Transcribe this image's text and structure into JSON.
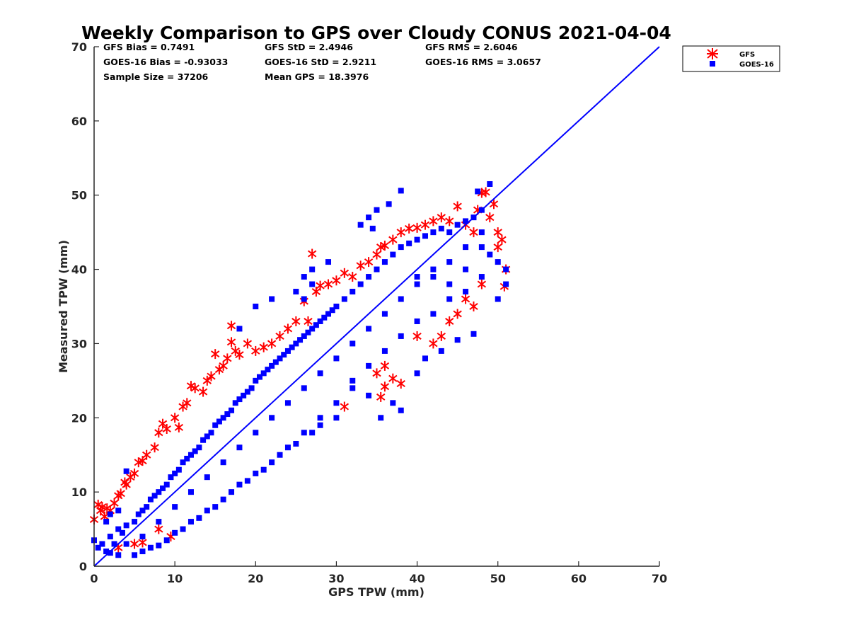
{
  "chart_data": {
    "type": "scatter",
    "title": "Weekly Comparison to GPS over Cloudy CONUS 2021-04-04",
    "xlabel": "GPS TPW (mm)",
    "ylabel": "Measured TPW (mm)",
    "xlim": [
      0,
      70
    ],
    "ylim": [
      0,
      70
    ],
    "xticks": [
      "0",
      "10",
      "20",
      "30",
      "40",
      "50",
      "60",
      "70"
    ],
    "yticks": [
      "0",
      "10",
      "20",
      "30",
      "40",
      "50",
      "60",
      "70"
    ],
    "grid": false,
    "legend_position": "outside top-right",
    "reference_line": {
      "x": [
        0,
        70
      ],
      "y": [
        0,
        70
      ],
      "color": "#0000ff"
    },
    "stats": {
      "gfs_bias": "GFS Bias = 0.7491",
      "gfs_std": "GFS StD = 2.4946",
      "gfs_rms": "GFS RMS = 2.6046",
      "goes_bias": "GOES-16 Bias = -0.93033",
      "goes_std": "GOES-16 StD = 2.9211",
      "goes_rms": "GOES-16 RMS = 3.0657",
      "sample_size": "Sample Size = 37206",
      "mean_gps": "Mean GPS = 18.3976"
    },
    "series": [
      {
        "name": "GFS",
        "marker": "asterisk",
        "color": "#ff0000",
        "points": [
          [
            0,
            6.3
          ],
          [
            0.5,
            8.3
          ],
          [
            0.8,
            7.5
          ],
          [
            1,
            8
          ],
          [
            1.3,
            6.7
          ],
          [
            1.6,
            7.8
          ],
          [
            2,
            7.5
          ],
          [
            2.5,
            8.5
          ],
          [
            3,
            9.5
          ],
          [
            3.3,
            9.8
          ],
          [
            3.8,
            11.3
          ],
          [
            4,
            11
          ],
          [
            4.5,
            12
          ],
          [
            5,
            12.5
          ],
          [
            5.5,
            14
          ],
          [
            6,
            14.2
          ],
          [
            6.5,
            15
          ],
          [
            7.5,
            16
          ],
          [
            8,
            18
          ],
          [
            8.5,
            19.2
          ],
          [
            9,
            18.5
          ],
          [
            10,
            20
          ],
          [
            10.5,
            18.7
          ],
          [
            11,
            21.5
          ],
          [
            11.5,
            22
          ],
          [
            12,
            24.3
          ],
          [
            12.5,
            24
          ],
          [
            13.5,
            23.5
          ],
          [
            14,
            25
          ],
          [
            14.5,
            25.6
          ],
          [
            15,
            28.6
          ],
          [
            15.5,
            26.5
          ],
          [
            16,
            27
          ],
          [
            16.5,
            28
          ],
          [
            17,
            32.4
          ],
          [
            17,
            30.2
          ],
          [
            17.5,
            29
          ],
          [
            18,
            28.5
          ],
          [
            19,
            30
          ],
          [
            20,
            29
          ],
          [
            21,
            29.5
          ],
          [
            22,
            30
          ],
          [
            23,
            31
          ],
          [
            24,
            32
          ],
          [
            25,
            33
          ],
          [
            26,
            35.7
          ],
          [
            26.5,
            33
          ],
          [
            27,
            42.1
          ],
          [
            27.5,
            37
          ],
          [
            28,
            37.8
          ],
          [
            29,
            38
          ],
          [
            30,
            38.5
          ],
          [
            31,
            39.5
          ],
          [
            32,
            39
          ],
          [
            33,
            40.5
          ],
          [
            34,
            41
          ],
          [
            35,
            42
          ],
          [
            35.5,
            43
          ],
          [
            36,
            43.2
          ],
          [
            37,
            44
          ],
          [
            38,
            45
          ],
          [
            39,
            45.5
          ],
          [
            40,
            45.6
          ],
          [
            41,
            46
          ],
          [
            42,
            46.5
          ],
          [
            43,
            47
          ],
          [
            44,
            46.5
          ],
          [
            45,
            48.5
          ],
          [
            46,
            46
          ],
          [
            47,
            45
          ],
          [
            47.5,
            48
          ],
          [
            48,
            50.3
          ],
          [
            48.5,
            50.4
          ],
          [
            49,
            47
          ],
          [
            49.5,
            48.8
          ],
          [
            50,
            45
          ],
          [
            50.5,
            44
          ],
          [
            50,
            43
          ],
          [
            51,
            40
          ],
          [
            50.8,
            37.7
          ],
          [
            48,
            38
          ],
          [
            47,
            35
          ],
          [
            46,
            36
          ],
          [
            45,
            34
          ],
          [
            44,
            33
          ],
          [
            43,
            31
          ],
          [
            42,
            30
          ],
          [
            40,
            31
          ],
          [
            38,
            24.6
          ],
          [
            37,
            25.3
          ],
          [
            36,
            24.2
          ],
          [
            35.5,
            22.8
          ],
          [
            31,
            21.5
          ],
          [
            35,
            26
          ],
          [
            36,
            27
          ],
          [
            8,
            5
          ],
          [
            9.5,
            4
          ],
          [
            6,
            3.2
          ],
          [
            3,
            2.5
          ],
          [
            5,
            3
          ]
        ]
      },
      {
        "name": "GOES-16",
        "marker": "square",
        "color": "#0000ff",
        "points": [
          [
            0,
            3.5
          ],
          [
            0.5,
            2.5
          ],
          [
            1,
            3
          ],
          [
            1.5,
            2
          ],
          [
            2,
            4
          ],
          [
            2.5,
            3
          ],
          [
            3,
            5
          ],
          [
            3.5,
            4.5
          ],
          [
            4,
            5.5
          ],
          [
            5,
            6
          ],
          [
            5.5,
            7
          ],
          [
            6,
            7.5
          ],
          [
            6.5,
            8
          ],
          [
            7,
            9
          ],
          [
            7.5,
            9.5
          ],
          [
            8,
            10
          ],
          [
            8.5,
            10.5
          ],
          [
            9,
            11
          ],
          [
            9.5,
            12
          ],
          [
            10,
            12.5
          ],
          [
            10.5,
            13
          ],
          [
            11,
            14
          ],
          [
            11.5,
            14.5
          ],
          [
            12,
            15
          ],
          [
            12.5,
            15.5
          ],
          [
            13,
            16
          ],
          [
            13.5,
            17
          ],
          [
            14,
            17.5
          ],
          [
            14.5,
            18
          ],
          [
            15,
            19
          ],
          [
            15.5,
            19.5
          ],
          [
            16,
            20
          ],
          [
            16.5,
            20.5
          ],
          [
            17,
            21
          ],
          [
            17.5,
            22
          ],
          [
            18,
            22.5
          ],
          [
            18.5,
            23
          ],
          [
            19,
            23.5
          ],
          [
            19.5,
            24
          ],
          [
            20,
            25
          ],
          [
            20.5,
            25.5
          ],
          [
            21,
            26
          ],
          [
            21.5,
            26.5
          ],
          [
            22,
            27
          ],
          [
            22.5,
            27.5
          ],
          [
            23,
            28
          ],
          [
            23.5,
            28.5
          ],
          [
            24,
            29
          ],
          [
            24.5,
            29.5
          ],
          [
            25,
            30
          ],
          [
            25.5,
            30.5
          ],
          [
            26,
            31
          ],
          [
            26.5,
            31.5
          ],
          [
            27,
            32
          ],
          [
            27.5,
            32.5
          ],
          [
            28,
            33
          ],
          [
            28.5,
            33.5
          ],
          [
            29,
            34
          ],
          [
            29.5,
            34.5
          ],
          [
            30,
            35
          ],
          [
            31,
            36
          ],
          [
            32,
            37
          ],
          [
            33,
            38
          ],
          [
            34,
            39
          ],
          [
            35,
            40
          ],
          [
            36,
            41
          ],
          [
            37,
            42
          ],
          [
            38,
            43
          ],
          [
            39,
            43.5
          ],
          [
            40,
            44
          ],
          [
            41,
            44.5
          ],
          [
            42,
            45
          ],
          [
            43,
            45.5
          ],
          [
            44,
            45
          ],
          [
            45,
            46
          ],
          [
            46,
            46.5
          ],
          [
            47,
            47
          ],
          [
            48,
            48
          ],
          [
            49,
            51.5
          ],
          [
            47.5,
            50.5
          ],
          [
            38,
            50.6
          ],
          [
            36.5,
            48.8
          ],
          [
            35,
            48
          ],
          [
            34,
            47
          ],
          [
            34.5,
            45.5
          ],
          [
            33,
            46
          ],
          [
            27,
            38
          ],
          [
            27,
            40
          ],
          [
            26,
            39
          ],
          [
            29,
            41
          ],
          [
            4,
            12.8
          ],
          [
            1.5,
            6
          ],
          [
            2,
            7
          ],
          [
            3,
            7.5
          ],
          [
            20,
            35
          ],
          [
            18,
            32
          ],
          [
            22,
            36
          ],
          [
            25,
            37
          ],
          [
            26,
            36
          ],
          [
            40,
            39
          ],
          [
            42,
            40
          ],
          [
            44,
            38
          ],
          [
            46,
            37
          ],
          [
            48,
            39
          ],
          [
            49,
            42
          ],
          [
            50,
            41
          ],
          [
            51,
            40
          ],
          [
            51,
            38
          ],
          [
            50,
            36
          ],
          [
            47,
            31.3
          ],
          [
            45,
            30.5
          ],
          [
            43,
            29
          ],
          [
            41,
            28
          ],
          [
            40,
            26
          ],
          [
            38,
            21
          ],
          [
            37,
            22
          ],
          [
            35.5,
            20
          ],
          [
            34,
            23
          ],
          [
            32,
            24
          ],
          [
            30,
            20
          ],
          [
            28,
            19
          ],
          [
            27,
            18
          ],
          [
            25,
            16.5
          ],
          [
            23,
            15
          ],
          [
            21,
            13
          ],
          [
            19,
            11.5
          ],
          [
            17,
            10
          ],
          [
            15,
            8
          ],
          [
            13,
            6.5
          ],
          [
            11,
            5
          ],
          [
            9,
            3.5
          ],
          [
            7,
            2.5
          ],
          [
            5,
            1.5
          ],
          [
            3,
            1.5
          ],
          [
            2,
            1.8
          ],
          [
            6,
            2
          ],
          [
            8,
            2.8
          ],
          [
            10,
            4.5
          ],
          [
            12,
            6
          ],
          [
            14,
            7.5
          ],
          [
            16,
            9
          ],
          [
            18,
            11
          ],
          [
            20,
            12.5
          ],
          [
            22,
            14
          ],
          [
            24,
            16
          ],
          [
            26,
            18
          ],
          [
            28,
            20
          ],
          [
            30,
            22
          ],
          [
            32,
            25
          ],
          [
            34,
            27
          ],
          [
            36,
            29
          ],
          [
            38,
            31
          ],
          [
            40,
            33
          ],
          [
            42,
            34
          ],
          [
            44,
            36
          ],
          [
            46,
            40
          ],
          [
            48,
            43
          ],
          [
            6,
            4
          ],
          [
            4,
            3
          ],
          [
            8,
            6
          ],
          [
            10,
            8
          ],
          [
            12,
            10
          ],
          [
            14,
            12
          ],
          [
            16,
            14
          ],
          [
            18,
            16
          ],
          [
            20,
            18
          ],
          [
            22,
            20
          ],
          [
            24,
            22
          ],
          [
            26,
            24
          ],
          [
            28,
            26
          ],
          [
            30,
            28
          ],
          [
            32,
            30
          ],
          [
            34,
            32
          ],
          [
            36,
            34
          ],
          [
            38,
            36
          ],
          [
            40,
            38
          ],
          [
            42,
            39
          ],
          [
            44,
            41
          ],
          [
            46,
            43
          ],
          [
            48,
            45
          ]
        ]
      }
    ]
  }
}
